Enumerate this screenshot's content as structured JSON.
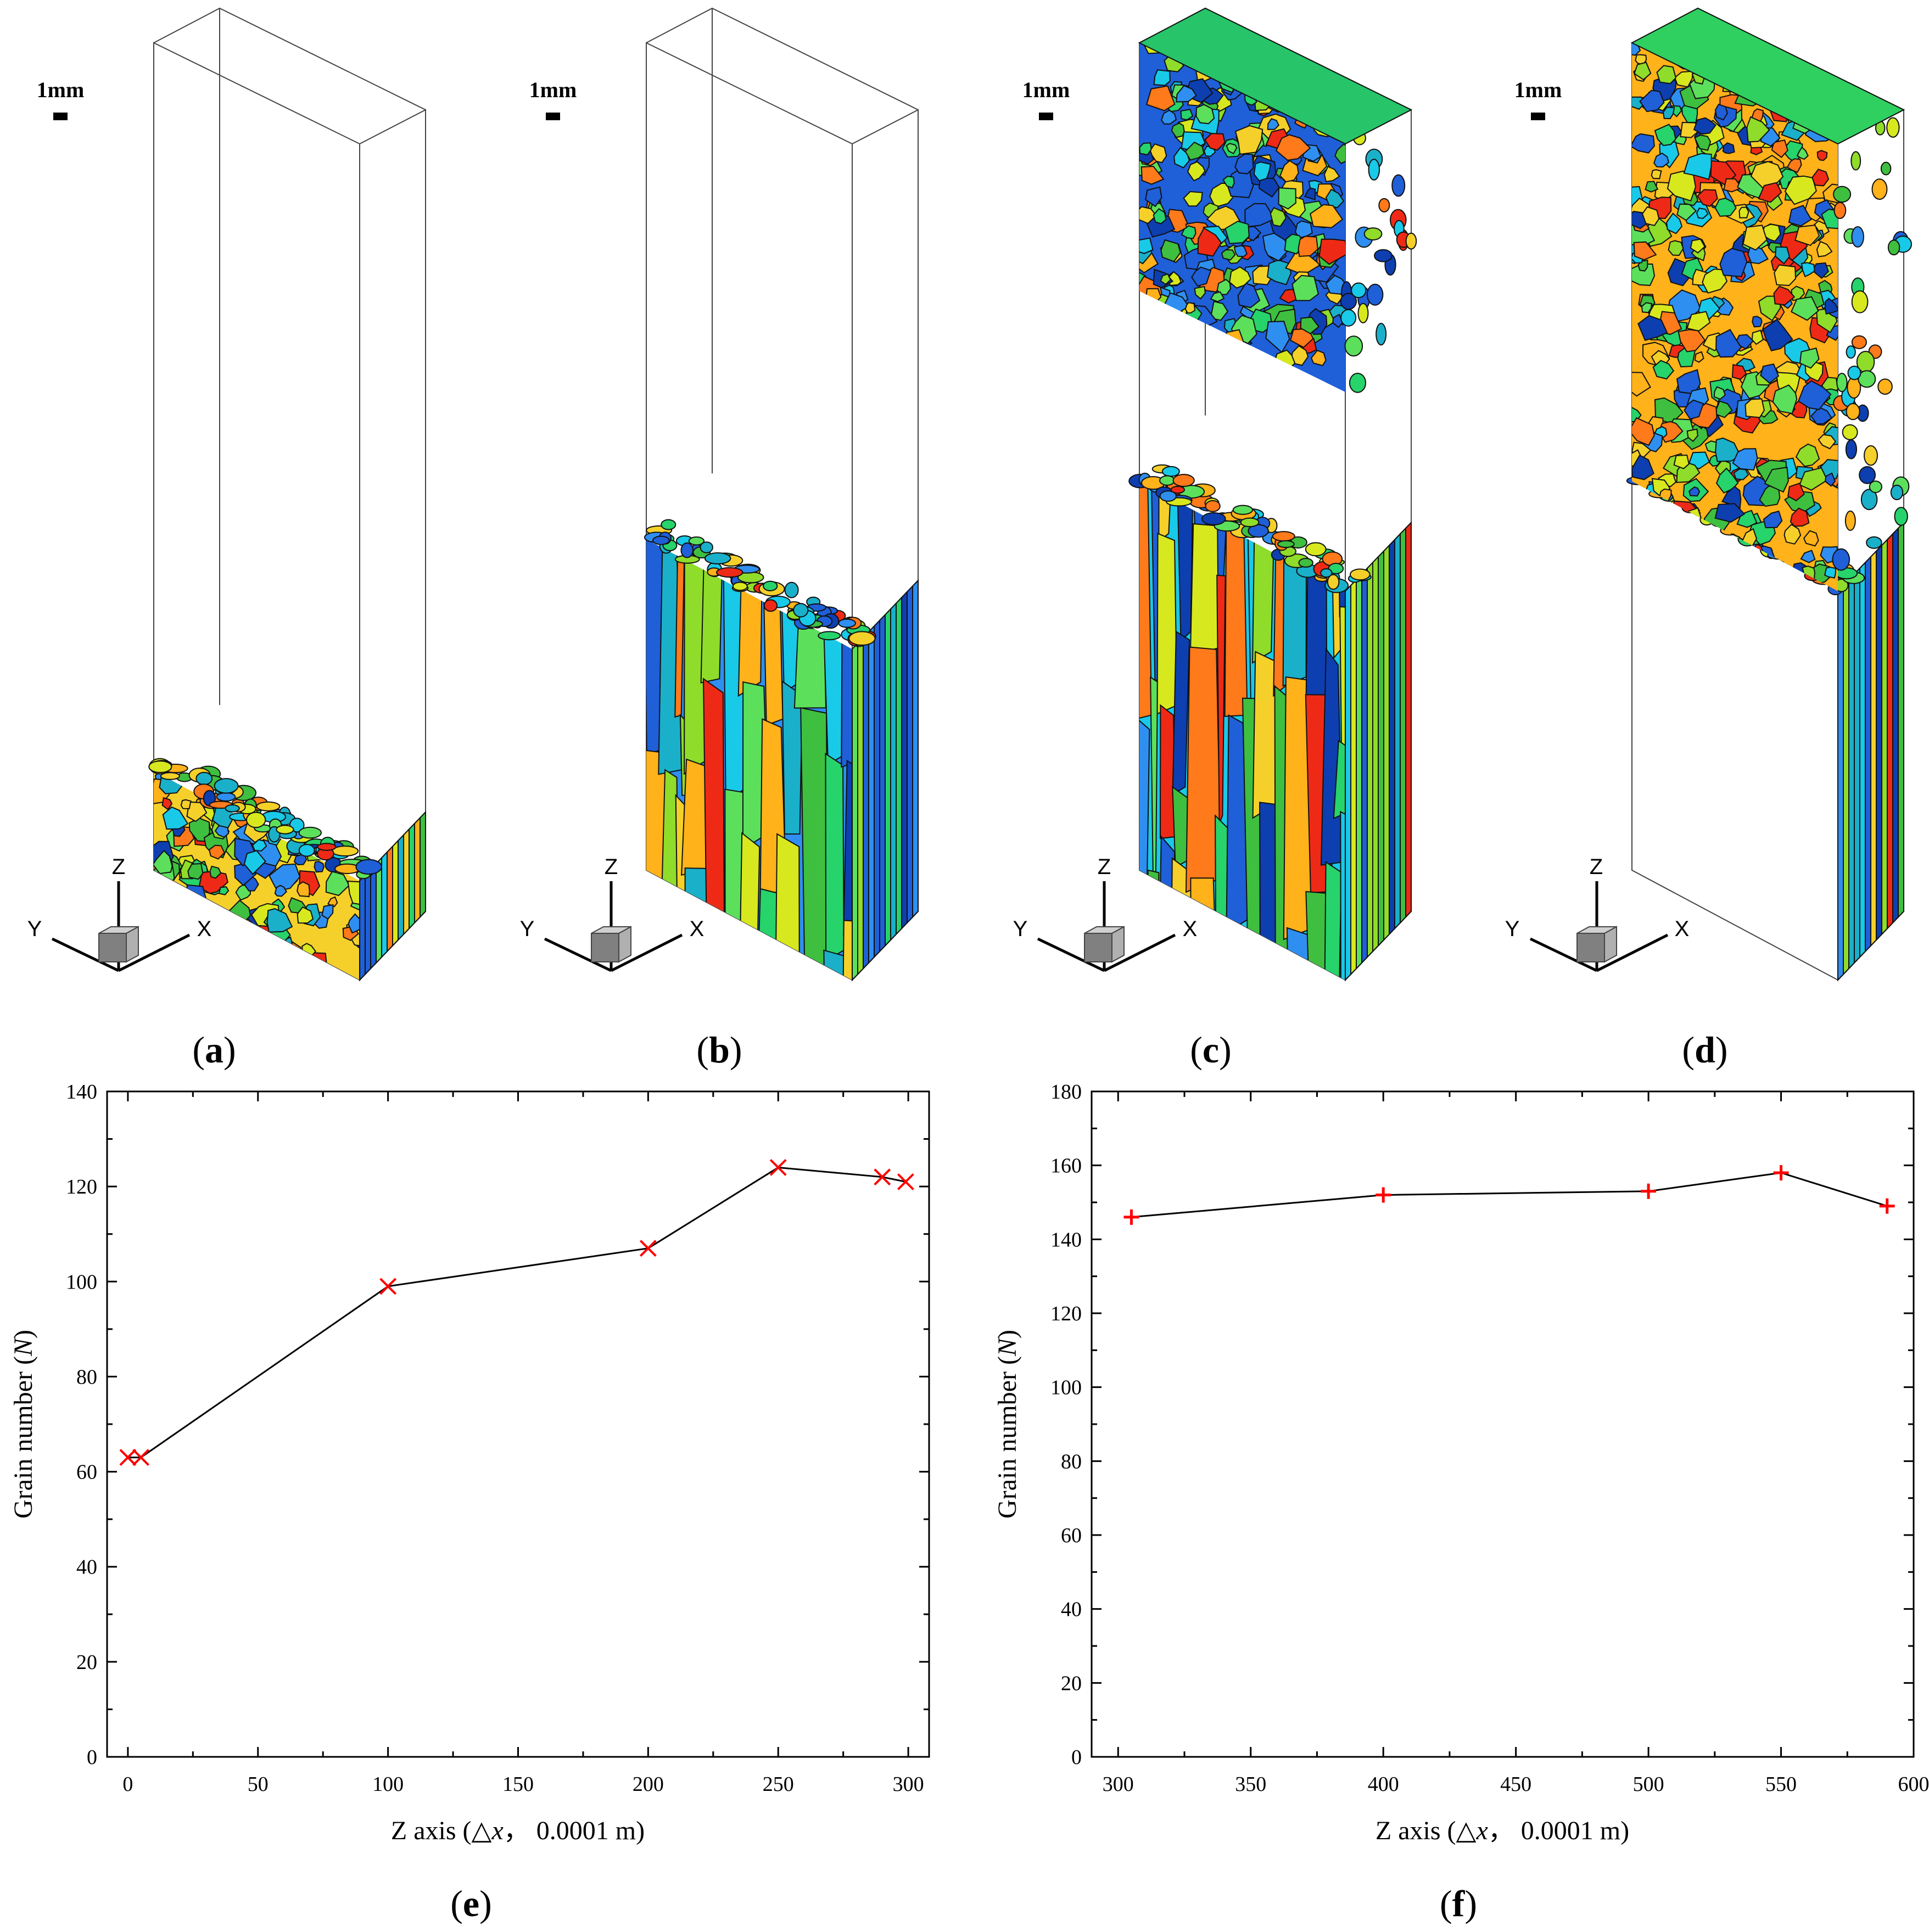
{
  "panels_3d": [
    {
      "label_open": "(",
      "label_letter": "a",
      "label_close": ")",
      "scale_bar": "1mm",
      "fill_level": 0.12,
      "top_block_fill": 0
    },
    {
      "label_open": "(",
      "label_letter": "b",
      "label_close": ")",
      "scale_bar": "1mm",
      "fill_level": 0.4,
      "top_block_fill": 0
    },
    {
      "label_open": "(",
      "label_letter": "c",
      "label_close": ")",
      "scale_bar": "1mm",
      "fill_level": 0.47,
      "top_block_fill": 0.3
    },
    {
      "label_open": "(",
      "label_letter": "d",
      "label_close": ")",
      "scale_bar": "1mm",
      "fill_level": 1.0,
      "top_block_fill": 0
    }
  ],
  "axis_triad": {
    "x": "X",
    "y": "Y",
    "z": "Z"
  },
  "grain_colors": [
    "#1f5fd8",
    "#2f8ff0",
    "#19c9e8",
    "#27d36b",
    "#3fbf3f",
    "#8fdc2a",
    "#d8e81e",
    "#ffb21a",
    "#ff7a1a",
    "#ee2a16",
    "#1ab0c9",
    "#0d3fb0",
    "#5ce05c",
    "#f5d02a"
  ],
  "chart_data": [
    {
      "type": "line",
      "panel_label": {
        "open": "(",
        "letter": "e",
        "close": ")"
      },
      "marker": "x",
      "marker_color": "#ff0000",
      "line_color": "#000000",
      "x": [
        0,
        5,
        100,
        200,
        250,
        290,
        299
      ],
      "y": [
        63,
        63,
        99,
        107,
        124,
        122,
        121
      ],
      "xlim": [
        -8,
        308
      ],
      "ylim": [
        0,
        140
      ],
      "xticks": [
        0,
        50,
        100,
        150,
        200,
        250,
        300
      ],
      "yticks": [
        0,
        20,
        40,
        60,
        80,
        100,
        120,
        140
      ],
      "ylabel_pre": "Grain number (",
      "ylabel_var": "N",
      "ylabel_post": ")",
      "xlabel_pre": "Z axis (△",
      "xlabel_var": "x",
      "xlabel_post": "，  0.0001 m)"
    },
    {
      "type": "line",
      "panel_label": {
        "open": "(",
        "letter": "f",
        "close": ")"
      },
      "marker": "+",
      "marker_color": "#ff0000",
      "line_color": "#000000",
      "x": [
        305,
        400,
        500,
        550,
        590
      ],
      "y": [
        146,
        152,
        153,
        158,
        149
      ],
      "xlim": [
        290,
        600
      ],
      "ylim": [
        0,
        180
      ],
      "xticks": [
        300,
        350,
        400,
        450,
        500,
        550,
        600
      ],
      "yticks": [
        0,
        20,
        40,
        60,
        80,
        100,
        120,
        140,
        160,
        180
      ],
      "ylabel_pre": "Grain number (",
      "ylabel_var": "N",
      "ylabel_post": ")",
      "xlabel_pre": "Z axis (△",
      "xlabel_var": "x",
      "xlabel_post": "，  0.0001 m)"
    }
  ]
}
